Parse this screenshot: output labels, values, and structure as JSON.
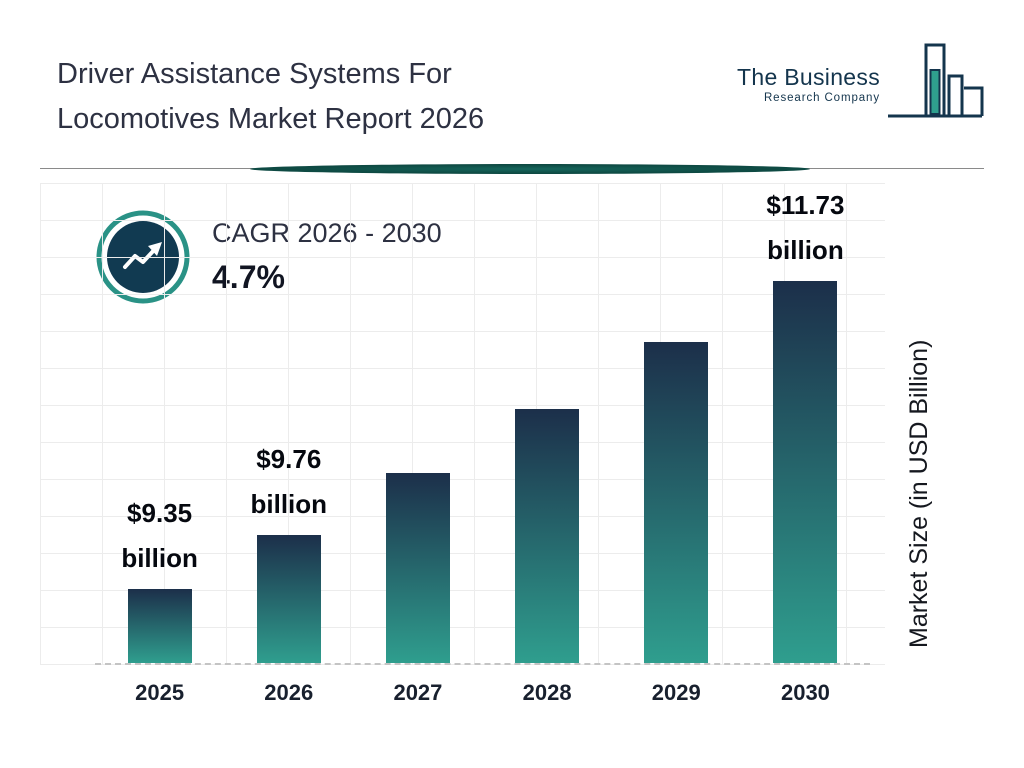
{
  "header": {
    "title_line1": "Driver Assistance Systems For",
    "title_line2": "Locomotives Market Report 2026",
    "logo": {
      "name": "The Business",
      "subname": "Research Company"
    }
  },
  "cagr": {
    "label": "CAGR 2026 - 2030",
    "value": "4.7%"
  },
  "chart_data": {
    "type": "bar",
    "title": "Driver Assistance Systems For Locomotives Market Report 2026",
    "categories": [
      "2025",
      "2026",
      "2027",
      "2028",
      "2029",
      "2030"
    ],
    "values": [
      9.35,
      9.76,
      10.22,
      10.7,
      11.2,
      11.73
    ],
    "unit": "USD Billion",
    "ylabel": "Market Size (in USD Billion)",
    "xlabel": "",
    "baseline_value": 8.8,
    "grid": true,
    "annotations": [
      {
        "category": "2025",
        "value_text": "$9.35",
        "unit_text": "billion"
      },
      {
        "category": "2026",
        "value_text": "$9.76",
        "unit_text": "billion"
      },
      {
        "category": "2030",
        "value_text": "$11.73",
        "unit_text": "billion"
      }
    ],
    "colors": {
      "bar_top": "#1c2f4a",
      "bar_bottom": "#2f9e8e",
      "accent_teal": "#2a9286",
      "navy": "#14354d"
    }
  }
}
